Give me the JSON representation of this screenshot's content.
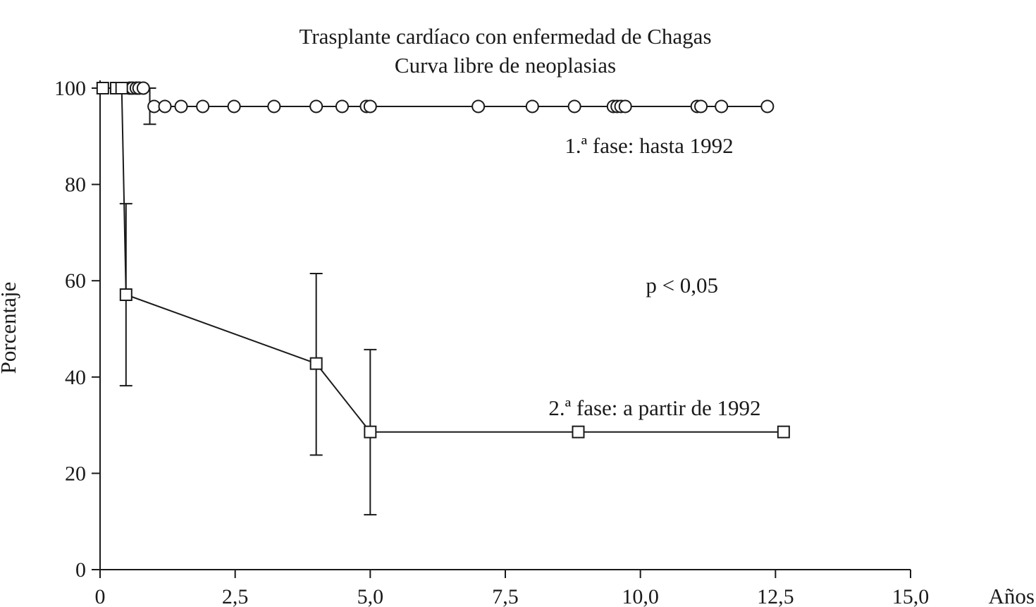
{
  "chart_data": {
    "type": "line",
    "title": "Trasplante cardíaco con enfermedad de Chagas",
    "subtitle": "Curva libre de neoplasias",
    "xlabel": "Años",
    "ylabel": "Porcentaje",
    "xlim": [
      0,
      15
    ],
    "ylim": [
      0,
      100
    ],
    "xticks": [
      0,
      2.5,
      5,
      7.5,
      10,
      12.5,
      15
    ],
    "xtick_labels": [
      "0",
      "2,5",
      "5,0",
      "7,5",
      "10,0",
      "12,5",
      "15,0"
    ],
    "yticks": [
      0,
      20,
      40,
      60,
      80,
      100
    ],
    "ytick_labels": [
      "0",
      "20",
      "40",
      "60",
      "80",
      "100"
    ],
    "grid": false,
    "annotations": [
      {
        "text": "1.ª fase: hasta 1992",
        "x": 8.6,
        "y": 88
      },
      {
        "text": "p < 0,05",
        "x": 10.1,
        "y": 59
      },
      {
        "text": "2.ª fase: a partir de 1992",
        "x": 8.3,
        "y": 33.5
      }
    ],
    "series": [
      {
        "name": "1.ª fase: hasta 1992",
        "marker": "circle",
        "step_line": [
          [
            0,
            100
          ],
          [
            0.92,
            100
          ],
          [
            0.92,
            96.2
          ],
          [
            12.35,
            96.2
          ]
        ],
        "points": [
          [
            0.55,
            100
          ],
          [
            0.6,
            100
          ],
          [
            0.67,
            100
          ],
          [
            0.72,
            100
          ],
          [
            0.8,
            100
          ],
          [
            1.0,
            96.2
          ],
          [
            1.2,
            96.2
          ],
          [
            1.5,
            96.2
          ],
          [
            1.9,
            96.2
          ],
          [
            2.48,
            96.2
          ],
          [
            3.22,
            96.2
          ],
          [
            4.0,
            96.2
          ],
          [
            4.48,
            96.2
          ],
          [
            4.93,
            96.2
          ],
          [
            5.0,
            96.2
          ],
          [
            7.0,
            96.2
          ],
          [
            8.0,
            96.2
          ],
          [
            8.78,
            96.2
          ],
          [
            9.5,
            96.2
          ],
          [
            9.57,
            96.2
          ],
          [
            9.64,
            96.2
          ],
          [
            9.72,
            96.2
          ],
          [
            11.05,
            96.2
          ],
          [
            11.12,
            96.2
          ],
          [
            11.5,
            96.2
          ],
          [
            12.35,
            96.2
          ]
        ],
        "error_bars": [
          {
            "x": 0.92,
            "low": 92.5,
            "high": 100
          }
        ]
      },
      {
        "name": "2.ª fase: a partir de 1992",
        "marker": "square",
        "step_line": [
          [
            0,
            100
          ],
          [
            0.4,
            100
          ],
          [
            0.48,
            57.1
          ],
          [
            4.0,
            42.8
          ],
          [
            5.0,
            28.6
          ],
          [
            12.65,
            28.6
          ]
        ],
        "points": [
          [
            0.05,
            100
          ],
          [
            0.3,
            100
          ],
          [
            0.4,
            100
          ],
          [
            0.48,
            57.1
          ],
          [
            4.0,
            42.8
          ],
          [
            5.0,
            28.6
          ],
          [
            8.85,
            28.6
          ],
          [
            12.65,
            28.6
          ]
        ],
        "error_bars": [
          {
            "x": 0.48,
            "low": 38.2,
            "high": 76
          },
          {
            "x": 4.0,
            "low": 23.8,
            "high": 61.5
          },
          {
            "x": 5.0,
            "low": 11.4,
            "high": 45.7
          }
        ]
      }
    ]
  }
}
